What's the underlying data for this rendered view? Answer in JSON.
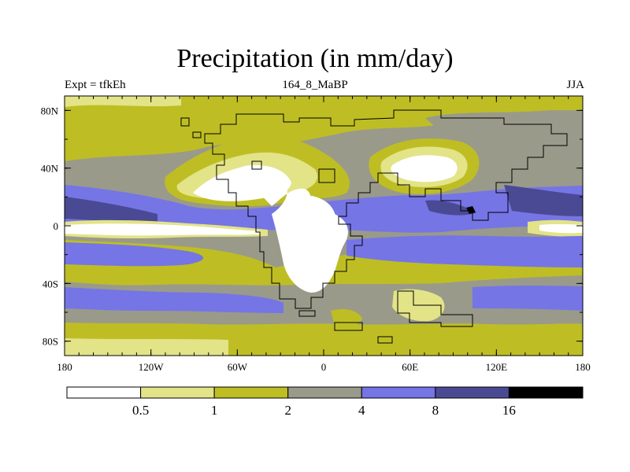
{
  "title": "Precipitation (in mm/day)",
  "subtitle_left": "Expt = tfkEh",
  "subtitle_center": "164_8_MaBP",
  "subtitle_right": "JJA",
  "x_ticks": [
    "180",
    "120W",
    "60W",
    "0",
    "60E",
    "120E",
    "180"
  ],
  "y_ticks": [
    "80N",
    "40N",
    "0",
    "40S",
    "80S"
  ],
  "colorbar": {
    "colors": [
      "#ffffff",
      "#e3e388",
      "#bebe24",
      "#9a9a8a",
      "#7575e6",
      "#4a4a94",
      "#000000"
    ],
    "labels": [
      "0.5",
      "1",
      "2",
      "4",
      "8",
      "16"
    ]
  },
  "colors": {
    "ocean_base": "#9a9a8a",
    "land_outline": "#000000"
  }
}
